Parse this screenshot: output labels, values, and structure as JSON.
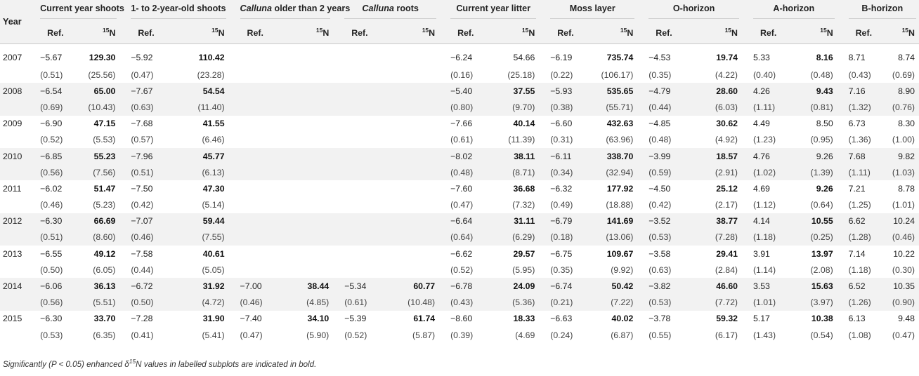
{
  "header": {
    "year": "Year",
    "groups": [
      {
        "label": "Current year shoots",
        "italic": ""
      },
      {
        "label": "1- to 2-year-old shoots",
        "italic": ""
      },
      {
        "label": " older than 2 years",
        "italic": "Calluna"
      },
      {
        "label": " roots",
        "italic": "Calluna"
      },
      {
        "label": "Current year litter",
        "italic": ""
      },
      {
        "label": "Moss layer",
        "italic": ""
      },
      {
        "label": "O-horizon",
        "italic": ""
      },
      {
        "label": "A-horizon",
        "italic": ""
      },
      {
        "label": "B-horizon",
        "italic": ""
      }
    ],
    "ref_label": "Ref.",
    "n15_sup": "15",
    "n15_label": "N"
  },
  "rows": [
    {
      "year": "2007",
      "mean": [
        [
          "−5.67",
          "129.30",
          true
        ],
        [
          "−5.92",
          "110.42",
          true
        ],
        [
          "",
          "",
          false
        ],
        [
          "",
          "",
          false
        ],
        [
          "−6.24",
          "54.66",
          false
        ],
        [
          "−6.19",
          "735.74",
          true
        ],
        [
          "−4.53",
          "19.74",
          true
        ],
        [
          "5.33",
          "8.16",
          true
        ],
        [
          "8.71",
          "8.74",
          false
        ]
      ],
      "se": [
        [
          "(0.51)",
          "(25.56)"
        ],
        [
          "(0.47)",
          "(23.28)"
        ],
        [
          "",
          ""
        ],
        [
          "",
          ""
        ],
        [
          "(0.16)",
          "(25.18)"
        ],
        [
          "(0.22)",
          "(106.17)"
        ],
        [
          "(0.35)",
          "(4.22)"
        ],
        [
          "(0.40)",
          "(0.48)"
        ],
        [
          "(0.43)",
          "(0.69)"
        ]
      ]
    },
    {
      "year": "2008",
      "mean": [
        [
          "−6.54",
          "65.00",
          true
        ],
        [
          "−7.67",
          "54.54",
          true
        ],
        [
          "",
          "",
          false
        ],
        [
          "",
          "",
          false
        ],
        [
          "−5.40",
          "37.55",
          true
        ],
        [
          "−5.93",
          "535.65",
          true
        ],
        [
          "−4.79",
          "28.60",
          true
        ],
        [
          "4.26",
          "9.43",
          true
        ],
        [
          "7.16",
          "8.90",
          false
        ]
      ],
      "se": [
        [
          "(0.69)",
          "(10.43)"
        ],
        [
          "(0.63)",
          "(11.40)"
        ],
        [
          "",
          ""
        ],
        [
          "",
          ""
        ],
        [
          "(0.80)",
          "(9.70)"
        ],
        [
          "(0.38)",
          "(55.71)"
        ],
        [
          "(0.44)",
          "(6.03)"
        ],
        [
          "(1.11)",
          "(0.81)"
        ],
        [
          "(1.32)",
          "(0.76)"
        ]
      ]
    },
    {
      "year": "2009",
      "mean": [
        [
          "−6.90",
          "47.15",
          true
        ],
        [
          "−7.68",
          "41.55",
          true
        ],
        [
          "",
          "",
          false
        ],
        [
          "",
          "",
          false
        ],
        [
          "−7.66",
          "40.14",
          true
        ],
        [
          "−6.60",
          "432.63",
          true
        ],
        [
          "−4.85",
          "30.62",
          true
        ],
        [
          "4.49",
          "8.50",
          false
        ],
        [
          "6.73",
          "8.30",
          false
        ]
      ],
      "se": [
        [
          "(0.52)",
          "(5.53)"
        ],
        [
          "(0.57)",
          "(6.46)"
        ],
        [
          "",
          ""
        ],
        [
          "",
          ""
        ],
        [
          "(0.61)",
          "(11.39)"
        ],
        [
          "(0.31)",
          "(63.96)"
        ],
        [
          "(0.48)",
          "(4.92)"
        ],
        [
          "(1.23)",
          "(0.95)"
        ],
        [
          "(1.36)",
          "(1.00)"
        ]
      ]
    },
    {
      "year": "2010",
      "mean": [
        [
          "−6.85",
          "55.23",
          true
        ],
        [
          "−7.96",
          "45.77",
          true
        ],
        [
          "",
          "",
          false
        ],
        [
          "",
          "",
          false
        ],
        [
          "−8.02",
          "38.11",
          true
        ],
        [
          "−6.11",
          "338.70",
          true
        ],
        [
          "−3.99",
          "18.57",
          true
        ],
        [
          "4.76",
          "9.26",
          false
        ],
        [
          "7.68",
          "9.82",
          false
        ]
      ],
      "se": [
        [
          "(0.56)",
          "(7.56)"
        ],
        [
          "(0.51)",
          "(6.13)"
        ],
        [
          "",
          ""
        ],
        [
          "",
          ""
        ],
        [
          "(0.48)",
          "(8.71)"
        ],
        [
          "(0.34)",
          "(32.94)"
        ],
        [
          "(0.59)",
          "(2.91)"
        ],
        [
          "(1.02)",
          "(1.39)"
        ],
        [
          "(1.11)",
          "(1.03)"
        ]
      ]
    },
    {
      "year": "2011",
      "mean": [
        [
          "−6.02",
          "51.47",
          true
        ],
        [
          "−7.50",
          "47.30",
          true
        ],
        [
          "",
          "",
          false
        ],
        [
          "",
          "",
          false
        ],
        [
          "−7.60",
          "36.68",
          true
        ],
        [
          "−6.32",
          "177.92",
          true
        ],
        [
          "−4.50",
          "25.12",
          true
        ],
        [
          "4.69",
          "9.26",
          true
        ],
        [
          "7.21",
          "8.78",
          false
        ]
      ],
      "se": [
        [
          "(0.46)",
          "(5.23)"
        ],
        [
          "(0.42)",
          "(5.14)"
        ],
        [
          "",
          ""
        ],
        [
          "",
          ""
        ],
        [
          "(0.47)",
          "(7.32)"
        ],
        [
          "(0.49)",
          "(18.88)"
        ],
        [
          "(0.42)",
          "(2.17)"
        ],
        [
          "(1.12)",
          "(0.64)"
        ],
        [
          "(1.25)",
          "(1.01)"
        ]
      ]
    },
    {
      "year": "2012",
      "mean": [
        [
          "−6.30",
          "66.69",
          true
        ],
        [
          "−7.07",
          "59.44",
          true
        ],
        [
          "",
          "",
          false
        ],
        [
          "",
          "",
          false
        ],
        [
          "−6.64",
          "31.11",
          true
        ],
        [
          "−6.79",
          "141.69",
          true
        ],
        [
          "−3.52",
          "38.77",
          true
        ],
        [
          "4.14",
          "10.55",
          true
        ],
        [
          "6.62",
          "10.24",
          false
        ]
      ],
      "se": [
        [
          "(0.51)",
          "(8.60)"
        ],
        [
          "(0.46)",
          "(7.55)"
        ],
        [
          "",
          ""
        ],
        [
          "",
          ""
        ],
        [
          "(0.64)",
          "(6.29)"
        ],
        [
          "(0.18)",
          "(13.06)"
        ],
        [
          "(0.53)",
          "(7.28)"
        ],
        [
          "(1.18)",
          "(0.25)"
        ],
        [
          "(1.28)",
          "(0.46)"
        ]
      ]
    },
    {
      "year": "2013",
      "mean": [
        [
          "−6.55",
          "49.12",
          true
        ],
        [
          "−7.58",
          "40.61",
          true
        ],
        [
          "",
          "",
          false
        ],
        [
          "",
          "",
          false
        ],
        [
          "−6.62",
          "29.57",
          true
        ],
        [
          "−6.75",
          "109.67",
          true
        ],
        [
          "−3.58",
          "29.41",
          true
        ],
        [
          "3.91",
          "13.97",
          true
        ],
        [
          "7.14",
          "10.22",
          false
        ]
      ],
      "se": [
        [
          "(0.50)",
          "(6.05)"
        ],
        [
          "(0.44)",
          "(5.05)"
        ],
        [
          "",
          ""
        ],
        [
          "",
          ""
        ],
        [
          "(0.52)",
          "(5.95)"
        ],
        [
          "(0.35)",
          "(9.92)"
        ],
        [
          "(0.63)",
          "(2.84)"
        ],
        [
          "(1.14)",
          "(2.08)"
        ],
        [
          "(1.18)",
          "(0.30)"
        ]
      ]
    },
    {
      "year": "2014",
      "mean": [
        [
          "−6.06",
          "36.13",
          true
        ],
        [
          "−6.72",
          "31.92",
          true
        ],
        [
          "−7.00",
          "38.44",
          true
        ],
        [
          "−5.34",
          "60.77",
          true
        ],
        [
          "−6.78",
          "24.09",
          true
        ],
        [
          "−6.74",
          "50.42",
          true
        ],
        [
          "−3.82",
          "46.60",
          true
        ],
        [
          "3.53",
          "15.63",
          true
        ],
        [
          "6.52",
          "10.35",
          false
        ]
      ],
      "se": [
        [
          "(0.56)",
          "(5.51)"
        ],
        [
          "(0.50)",
          "(4.72)"
        ],
        [
          "(0.46)",
          "(4.85)"
        ],
        [
          "(0.61)",
          "(10.48)"
        ],
        [
          "(0.43)",
          "(5.36)"
        ],
        [
          "(0.21)",
          "(7.22)"
        ],
        [
          "(0.53)",
          "(7.72)"
        ],
        [
          "(1.01)",
          "(3.97)"
        ],
        [
          "(1.26)",
          "(0.90)"
        ]
      ]
    },
    {
      "year": "2015",
      "mean": [
        [
          "−6.30",
          "33.70",
          true
        ],
        [
          "−7.28",
          "31.90",
          true
        ],
        [
          "−7.40",
          "34.10",
          true
        ],
        [
          "−5.39",
          "61.74",
          true
        ],
        [
          "−8.60",
          "18.33",
          true
        ],
        [
          "−6.63",
          "40.02",
          true
        ],
        [
          "−3.78",
          "59.32",
          true
        ],
        [
          "5.17",
          "10.38",
          true
        ],
        [
          "6.13",
          "9.48",
          false
        ]
      ],
      "se": [
        [
          "(0.53)",
          "(6.35)"
        ],
        [
          "(0.41)",
          "(5.41)"
        ],
        [
          "(0.47)",
          "(5.90)"
        ],
        [
          "(0.52)",
          "(5.87)"
        ],
        [
          "(0.39)",
          "(4.69"
        ],
        [
          "(0.24)",
          "(6.87)"
        ],
        [
          "(0.55)",
          "(6.17)"
        ],
        [
          "(1.43)",
          "(0.54)"
        ],
        [
          "(1.08)",
          "(0.47)"
        ]
      ]
    }
  ],
  "footnote": "Significantly (P < 0.05) enhanced δ15N values in labelled subplots are indicated in bold."
}
